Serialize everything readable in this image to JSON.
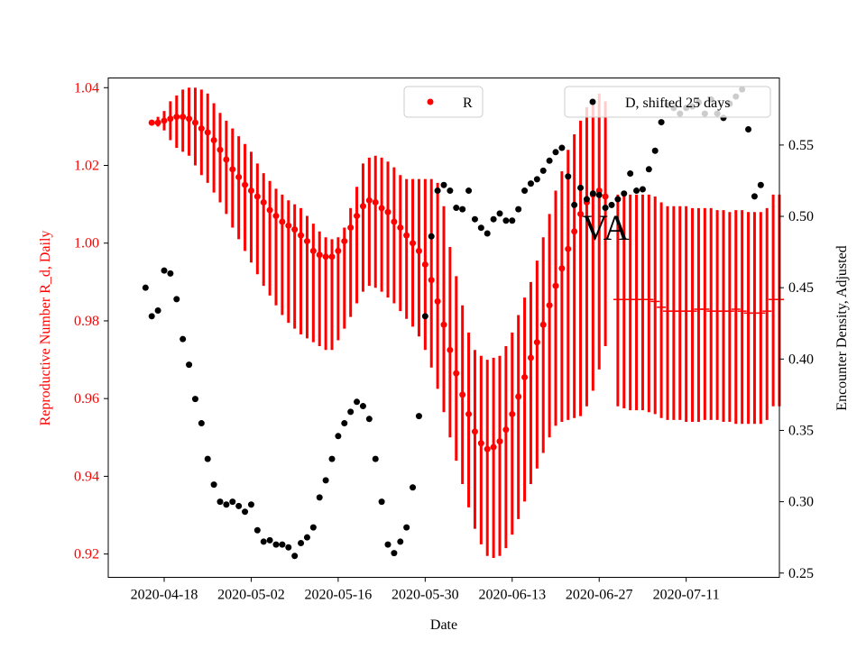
{
  "chart_data": {
    "type": "scatter",
    "xlabel": "Date",
    "ylabel_left": "Reproductive Number R_d, Daily",
    "ylabel_right": "Encounter Density, Adjusted",
    "annotation": "VA",
    "x_ticks": [
      "2020-04-18",
      "2020-05-02",
      "2020-05-16",
      "2020-05-30",
      "2020-06-13",
      "2020-06-27",
      "2020-07-11"
    ],
    "y_left_ticks": [
      "0.92",
      "0.94",
      "0.96",
      "0.98",
      "1.00",
      "1.02",
      "1.04"
    ],
    "y_right_ticks": [
      "0.25",
      "0.30",
      "0.35",
      "0.40",
      "0.45",
      "0.50",
      "0.55"
    ],
    "x_range": [
      "2020-04-09",
      "2020-07-26"
    ],
    "y_left_range": [
      0.914,
      1.0425
    ],
    "y_right_range": [
      0.247,
      0.597
    ],
    "colors": {
      "R": "#ff0000",
      "D": "#000000",
      "left_axis_text": "#ff0000"
    },
    "legend": [
      {
        "label": "R",
        "color": "#ff0000",
        "placement": "top-center"
      },
      {
        "label": "D, shifted 25 days",
        "color": "#000000",
        "placement": "top-right"
      }
    ],
    "series": [
      {
        "name": "R",
        "axis": "left",
        "start_date": "2020-04-16",
        "values": [
          1.031,
          1.031,
          1.0315,
          1.032,
          1.0325,
          1.0325,
          1.032,
          1.031,
          1.0295,
          1.0285,
          1.0265,
          1.024,
          1.0215,
          1.019,
          1.017,
          1.015,
          1.0135,
          1.012,
          1.0105,
          1.0085,
          1.007,
          1.0055,
          1.0045,
          1.0035,
          1.002,
          1.0005,
          0.998,
          0.997,
          0.9965,
          0.9965,
          0.998,
          1.0005,
          1.004,
          1.007,
          1.0095,
          1.011,
          1.0105,
          1.009,
          1.008,
          1.0055,
          1.004,
          1.002,
          1.0,
          0.998,
          0.9945,
          0.9905,
          0.985,
          0.979,
          0.9725,
          0.9665,
          0.961,
          0.956,
          0.9515,
          0.9485,
          0.947,
          0.9475,
          0.949,
          0.952,
          0.956,
          0.9605,
          0.9655,
          0.9705,
          0.9745,
          0.979,
          0.984,
          0.989,
          0.9935,
          0.9985,
          1.003,
          1.0075,
          1.0105,
          1.0125,
          1.0135,
          1.012
        ],
        "error_low": [
          1.0305,
          1.03,
          1.029,
          1.0265,
          1.0245,
          1.0235,
          1.0225,
          1.02,
          1.0175,
          1.0155,
          1.013,
          1.0105,
          1.0075,
          1.004,
          1.001,
          0.998,
          0.995,
          0.992,
          0.989,
          0.9865,
          0.984,
          0.9815,
          0.9795,
          0.978,
          0.9765,
          0.9755,
          0.9745,
          0.9735,
          0.9725,
          0.9725,
          0.975,
          0.978,
          0.981,
          0.9845,
          0.9875,
          0.989,
          0.9885,
          0.9875,
          0.986,
          0.9845,
          0.9825,
          0.9805,
          0.9785,
          0.976,
          0.9725,
          0.968,
          0.9625,
          0.9565,
          0.95,
          0.944,
          0.938,
          0.932,
          0.9265,
          0.9225,
          0.9195,
          0.919,
          0.9195,
          0.9215,
          0.925,
          0.929,
          0.9335,
          0.938,
          0.942,
          0.946,
          0.95,
          0.953,
          0.954,
          0.9545,
          0.955,
          0.9555,
          0.958,
          0.962,
          0.9675,
          0.9735
        ],
        "error_high": [
          1.0315,
          1.0325,
          1.034,
          1.0365,
          1.038,
          1.0395,
          1.04,
          1.04,
          1.0395,
          1.0385,
          1.036,
          1.0335,
          1.0315,
          1.0295,
          1.0275,
          1.0255,
          1.0235,
          1.0205,
          1.018,
          1.016,
          1.014,
          1.0125,
          1.011,
          1.01,
          1.009,
          1.007,
          1.005,
          1.003,
          1.0015,
          1.001,
          1.0015,
          1.004,
          1.009,
          1.0145,
          1.0205,
          1.022,
          1.0225,
          1.022,
          1.021,
          1.0195,
          1.0175,
          1.0165,
          1.0165,
          1.0165,
          1.0165,
          1.0165,
          1.0155,
          1.0095,
          0.999,
          0.9915,
          0.984,
          0.977,
          0.9725,
          0.971,
          0.97,
          0.9705,
          0.971,
          0.9735,
          0.977,
          0.9815,
          0.986,
          0.99,
          0.9955,
          1.0015,
          1.0075,
          1.0135,
          1.0185,
          1.024,
          1.028,
          1.0315,
          1.035,
          1.037,
          1.0385,
          1.0365
        ]
      },
      {
        "name": "R",
        "axis": "left",
        "start_date": "2020-06-30",
        "values": [
          0.9855,
          0.9855,
          0.9855,
          0.9855,
          0.9855,
          0.9855,
          0.985,
          0.9835,
          0.9825,
          0.9825,
          0.9825,
          0.9825,
          0.9825,
          0.983,
          0.983,
          0.9825,
          0.9825,
          0.9825,
          0.9825,
          0.983,
          0.9825,
          0.982,
          0.982,
          0.982,
          0.9825,
          0.9855,
          0.9855
        ],
        "error_low": [
          0.958,
          0.9575,
          0.957,
          0.957,
          0.957,
          0.9565,
          0.956,
          0.955,
          0.9545,
          0.9545,
          0.9545,
          0.954,
          0.954,
          0.954,
          0.9545,
          0.9545,
          0.9545,
          0.954,
          0.954,
          0.9535,
          0.9535,
          0.9535,
          0.9535,
          0.9535,
          0.9545,
          0.958,
          0.958
        ],
        "error_high": [
          1.0125,
          1.0125,
          1.0125,
          1.0125,
          1.0125,
          1.0125,
          1.012,
          1.0105,
          1.0095,
          1.0095,
          1.0095,
          1.0095,
          1.009,
          1.009,
          1.009,
          1.009,
          1.0085,
          1.0085,
          1.008,
          1.0085,
          1.0085,
          1.008,
          1.008,
          1.008,
          1.009,
          1.0125,
          1.0125
        ]
      },
      {
        "name": "D, shifted 25 days",
        "axis": "right",
        "start_date": "2020-04-15",
        "values": [
          0.45,
          0.43,
          0.434,
          0.462,
          0.46,
          0.442,
          0.414,
          0.396,
          0.372,
          0.355,
          0.33,
          0.312,
          0.3,
          0.298,
          0.3,
          0.297,
          0.293,
          0.298,
          0.28,
          0.272,
          0.273,
          0.27,
          0.27,
          0.268,
          0.262,
          0.271,
          0.275,
          0.282,
          0.303,
          0.315,
          0.33,
          0.346,
          0.355,
          0.363,
          0.37,
          0.367,
          0.358,
          0.33,
          0.3,
          0.27,
          0.264,
          0.272,
          0.282,
          0.31,
          0.36,
          0.43,
          0.486,
          0.518,
          0.522,
          0.518,
          0.506,
          0.505,
          0.518,
          0.498,
          0.492,
          0.488,
          0.498,
          0.502,
          0.497,
          0.497,
          0.505,
          0.518,
          0.523,
          0.526,
          0.532,
          0.539,
          0.545,
          0.548,
          0.528,
          0.508,
          0.52,
          0.512,
          0.516,
          0.515,
          0.506,
          0.508,
          0.512,
          0.516,
          0.53,
          0.518,
          0.519,
          0.533,
          0.546,
          0.566,
          0.578,
          0.576,
          0.572,
          0.576,
          0.577,
          0.58,
          0.572,
          0.582,
          0.572,
          0.569,
          0.579,
          0.584,
          0.589,
          0.561,
          0.514,
          0.522
        ]
      }
    ]
  }
}
